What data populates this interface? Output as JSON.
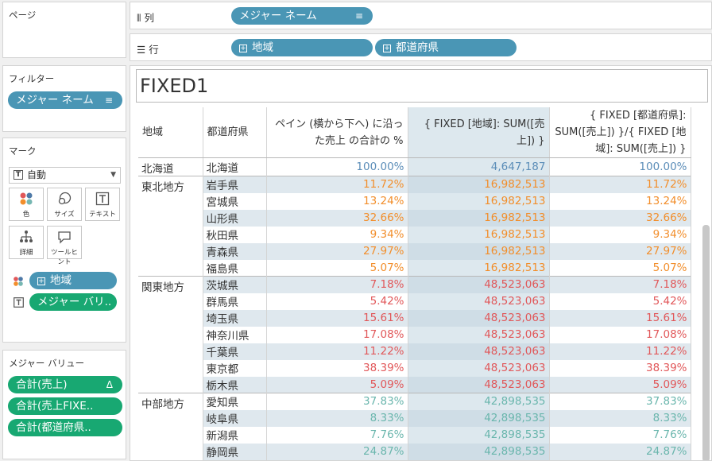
{
  "left": {
    "pages_title": "ページ",
    "filters_title": "フィルター",
    "filter_pill": "メジャー ネーム",
    "marks_title": "マーク",
    "mark_type": "自動",
    "mark_buttons": {
      "color": "色",
      "size": "サイズ",
      "text": "テキスト",
      "detail": "詳細",
      "tooltip": "ツールヒント"
    },
    "mark_pills": [
      "地域",
      "メジャー バリ.."
    ],
    "measures_title": "メジャー バリュー",
    "measure_pills": [
      "合計(売上)",
      "合計(売上FIXE..",
      "合計(都道府県.."
    ],
    "measure_pill_trail": "Δ"
  },
  "shelves": {
    "columns_label": "列",
    "columns_pill": "メジャー ネーム",
    "rows_label": "行",
    "rows_pills": [
      "地域",
      "都道府県"
    ]
  },
  "view": {
    "title": "FIXED1",
    "headers": [
      "地域",
      "都道府県",
      "ペイン (横から下へ) に沿った売上 の合計の %",
      "{ FIXED [地域]: SUM([売上]) }",
      "{ FIXED [都道府県]: SUM([売上]) }/{ FIXED [地域]: SUM([売上]) }"
    ],
    "groups": [
      {
        "region": "北海道",
        "color": "#5b8db8",
        "rows": [
          {
            "pref": "北海道",
            "pct": "100.00%",
            "fixed": "4,647,187",
            "ratio": "100.00%"
          }
        ]
      },
      {
        "region": "東北地方",
        "color": "#f28e2b",
        "rows": [
          {
            "pref": "岩手県",
            "pct": "11.72%",
            "fixed": "16,982,513",
            "ratio": "11.72%"
          },
          {
            "pref": "宮城県",
            "pct": "13.24%",
            "fixed": "16,982,513",
            "ratio": "13.24%"
          },
          {
            "pref": "山形県",
            "pct": "32.66%",
            "fixed": "16,982,513",
            "ratio": "32.66%"
          },
          {
            "pref": "秋田県",
            "pct": "9.34%",
            "fixed": "16,982,513",
            "ratio": "9.34%"
          },
          {
            "pref": "青森県",
            "pct": "27.97%",
            "fixed": "16,982,513",
            "ratio": "27.97%"
          },
          {
            "pref": "福島県",
            "pct": "5.07%",
            "fixed": "16,982,513",
            "ratio": "5.07%"
          }
        ]
      },
      {
        "region": "関東地方",
        "color": "#e15759",
        "rows": [
          {
            "pref": "茨城県",
            "pct": "7.18%",
            "fixed": "48,523,063",
            "ratio": "7.18%"
          },
          {
            "pref": "群馬県",
            "pct": "5.42%",
            "fixed": "48,523,063",
            "ratio": "5.42%"
          },
          {
            "pref": "埼玉県",
            "pct": "15.61%",
            "fixed": "48,523,063",
            "ratio": "15.61%"
          },
          {
            "pref": "神奈川県",
            "pct": "17.08%",
            "fixed": "48,523,063",
            "ratio": "17.08%"
          },
          {
            "pref": "千葉県",
            "pct": "11.22%",
            "fixed": "48,523,063",
            "ratio": "11.22%"
          },
          {
            "pref": "東京都",
            "pct": "38.39%",
            "fixed": "48,523,063",
            "ratio": "38.39%"
          },
          {
            "pref": "栃木県",
            "pct": "5.09%",
            "fixed": "48,523,063",
            "ratio": "5.09%"
          }
        ]
      },
      {
        "region": "中部地方",
        "color": "#6ab6ad",
        "rows": [
          {
            "pref": "愛知県",
            "pct": "37.83%",
            "fixed": "42,898,535",
            "ratio": "37.83%"
          },
          {
            "pref": "岐阜県",
            "pct": "8.33%",
            "fixed": "42,898,535",
            "ratio": "8.33%"
          },
          {
            "pref": "新潟県",
            "pct": "7.76%",
            "fixed": "42,898,535",
            "ratio": "7.76%"
          },
          {
            "pref": "静岡県",
            "pct": "24.87%",
            "fixed": "42,898,535",
            "ratio": "24.87%"
          }
        ]
      }
    ]
  },
  "colors": {
    "pill_blue": "#4a96b5",
    "pill_green": "#18a872",
    "selected_column": "#dde8ee"
  }
}
